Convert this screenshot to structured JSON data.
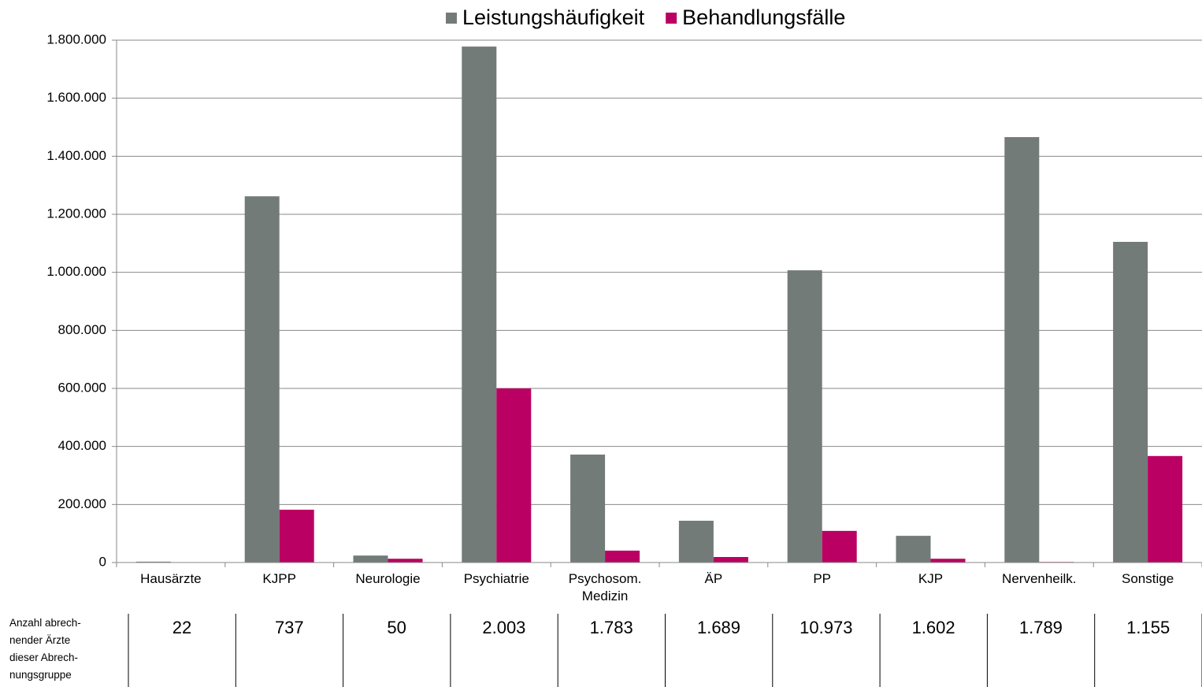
{
  "chart_data": {
    "type": "bar",
    "categories": [
      "Hausärzte",
      "KJPP",
      "Neurologie",
      "Psychiatrie",
      "Psychosom. Medizin",
      "ÄP",
      "PP",
      "KJP",
      "Nervenheilk.",
      "Sonstige"
    ],
    "series": [
      {
        "name": "Leistungshäufigkeit",
        "color": "#737b79",
        "values": [
          3000,
          1262000,
          24000,
          1778000,
          372000,
          144000,
          1007000,
          92000,
          1466000,
          1105000
        ]
      },
      {
        "name": "Behandlungsfälle",
        "color": "#bb0063",
        "values": [
          1000,
          182000,
          13000,
          600000,
          41000,
          19000,
          109000,
          13000,
          2000,
          367000
        ]
      }
    ],
    "ylim": [
      0,
      1800000
    ],
    "yticks": [
      0,
      {
        "value": 200000,
        "label": "200.000"
      },
      {
        "value": 400000,
        "label": "400.000"
      },
      {
        "value": 600000,
        "label": "600.000"
      },
      {
        "value": 800000,
        "label": "800.000"
      },
      {
        "value": 1000000,
        "label": "1.000.000"
      },
      {
        "value": 1200000,
        "label": "1.200.000"
      },
      {
        "value": 1400000,
        "label": "1.400.000"
      },
      {
        "value": 1600000,
        "label": "1.600.000"
      },
      {
        "value": 1800000,
        "label": "1.800.000"
      }
    ],
    "grid": true,
    "legend": "top",
    "table": {
      "label_lines": [
        "Anzahl abrech-",
        "nender Ärzte",
        "dieser Abrech-",
        "nungsgruppe"
      ],
      "values": [
        22,
        737,
        50,
        2003,
        1783,
        1689,
        10973,
        1602,
        1789,
        1155
      ],
      "value_labels": [
        "22",
        "737",
        "50",
        "2.003",
        "1.783",
        "1.689",
        "10.973",
        "1.602",
        "1.789",
        "1.155"
      ]
    }
  }
}
